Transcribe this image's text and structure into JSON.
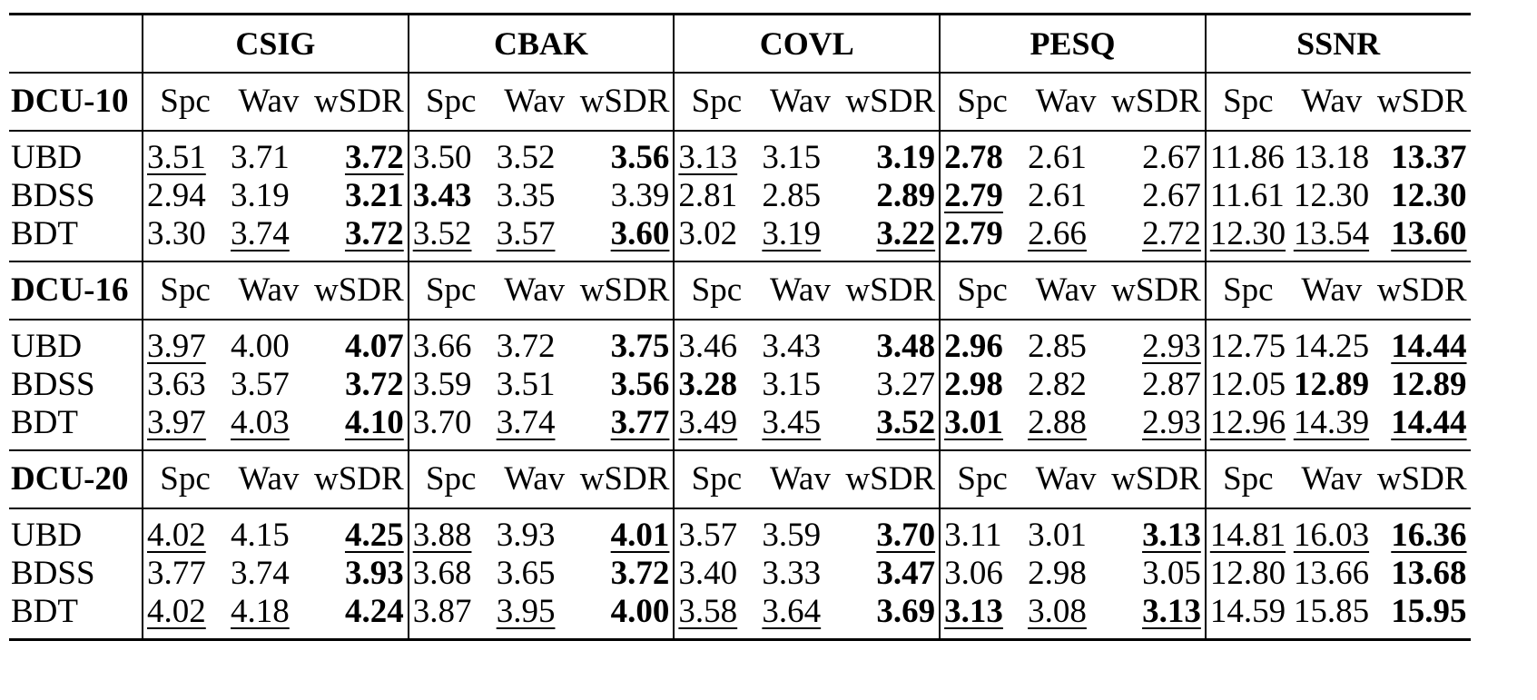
{
  "table": {
    "metrics": [
      "CSIG",
      "CBAK",
      "COVL",
      "PESQ",
      "SSNR"
    ],
    "blocks": [
      {
        "label": "DCU-10",
        "subheaders": [
          "Spc",
          "Wav",
          "wSDR",
          "Spc",
          "Wav",
          "wSDR",
          "Spc",
          "Wav",
          "wSDR",
          "Spc",
          "Wav",
          "wSDR",
          "Spc",
          "Wav",
          "wSDR"
        ],
        "rows": [
          {
            "label": "UBD",
            "cells": [
              "3.51",
              "3.71",
              "3.72",
              "3.50",
              "3.52",
              "3.56",
              "3.13",
              "3.15",
              "3.19",
              "2.78",
              "2.61",
              "2.67",
              "11.86",
              "13.18",
              "13.37"
            ],
            "bold": [
              2,
              5,
              8,
              9,
              14
            ],
            "underline": [
              0,
              2,
              6
            ]
          },
          {
            "label": "BDSS",
            "cells": [
              "2.94",
              "3.19",
              "3.21",
              "3.43",
              "3.35",
              "3.39",
              "2.81",
              "2.85",
              "2.89",
              "2.79",
              "2.61",
              "2.67",
              "11.61",
              "12.30",
              "12.30"
            ],
            "bold": [
              2,
              3,
              8,
              9,
              14
            ],
            "underline": [
              9
            ]
          },
          {
            "label": "BDT",
            "cells": [
              "3.30",
              "3.74",
              "3.72",
              "3.52",
              "3.57",
              "3.60",
              "3.02",
              "3.19",
              "3.22",
              "2.79",
              "2.66",
              "2.72",
              "12.30",
              "13.54",
              "13.60"
            ],
            "bold": [
              2,
              5,
              8,
              9,
              14
            ],
            "underline": [
              1,
              2,
              3,
              4,
              5,
              7,
              8,
              10,
              11,
              12,
              13,
              14
            ]
          }
        ]
      },
      {
        "label": "DCU-16",
        "subheaders": [
          "Spc",
          "Wav",
          "wSDR",
          "Spc",
          "Wav",
          "wSDR",
          "Spc",
          "Wav",
          "wSDR",
          "Spc",
          "Wav",
          "wSDR",
          "Spc",
          "Wav",
          "wSDR"
        ],
        "rows": [
          {
            "label": "UBD",
            "cells": [
              "3.97",
              "4.00",
              "4.07",
              "3.66",
              "3.72",
              "3.75",
              "3.46",
              "3.43",
              "3.48",
              "2.96",
              "2.85",
              "2.93",
              "12.75",
              "14.25",
              "14.44"
            ],
            "bold": [
              2,
              5,
              8,
              9,
              14
            ],
            "underline": [
              0,
              11,
              14
            ]
          },
          {
            "label": "BDSS",
            "cells": [
              "3.63",
              "3.57",
              "3.72",
              "3.59",
              "3.51",
              "3.56",
              "3.28",
              "3.15",
              "3.27",
              "2.98",
              "2.82",
              "2.87",
              "12.05",
              "12.89",
              "12.89"
            ],
            "bold": [
              2,
              5,
              6,
              9,
              13,
              14
            ],
            "underline": []
          },
          {
            "label": "BDT",
            "cells": [
              "3.97",
              "4.03",
              "4.10",
              "3.70",
              "3.74",
              "3.77",
              "3.49",
              "3.45",
              "3.52",
              "3.01",
              "2.88",
              "2.93",
              "12.96",
              "14.39",
              "14.44"
            ],
            "bold": [
              2,
              5,
              8,
              9,
              14
            ],
            "underline": [
              0,
              1,
              2,
              4,
              5,
              6,
              7,
              8,
              9,
              10,
              11,
              12,
              13,
              14
            ]
          }
        ]
      },
      {
        "label": "DCU-20",
        "subheaders": [
          "Spc",
          "Wav",
          "wSDR",
          "Spc",
          "Wav",
          "wSDR",
          "Spc",
          "Wav",
          "wSDR",
          "Spc",
          "Wav",
          "wSDR",
          "Spc",
          "Wav",
          "wSDR"
        ],
        "rows": [
          {
            "label": "UBD",
            "cells": [
              "4.02",
              "4.15",
              "4.25",
              "3.88",
              "3.93",
              "4.01",
              "3.57",
              "3.59",
              "3.70",
              "3.11",
              "3.01",
              "3.13",
              "14.81",
              "16.03",
              "16.36"
            ],
            "bold": [
              2,
              5,
              8,
              11,
              14
            ],
            "underline": [
              0,
              2,
              3,
              5,
              8,
              11,
              12,
              13,
              14
            ]
          },
          {
            "label": "BDSS",
            "cells": [
              "3.77",
              "3.74",
              "3.93",
              "3.68",
              "3.65",
              "3.72",
              "3.40",
              "3.33",
              "3.47",
              "3.06",
              "2.98",
              "3.05",
              "12.80",
              "13.66",
              "13.68"
            ],
            "bold": [
              2,
              5,
              8,
              14
            ],
            "underline": []
          },
          {
            "label": "BDT",
            "cells": [
              "4.02",
              "4.18",
              "4.24",
              "3.87",
              "3.95",
              "4.00",
              "3.58",
              "3.64",
              "3.69",
              "3.13",
              "3.08",
              "3.13",
              "14.59",
              "15.85",
              "15.95"
            ],
            "bold": [
              2,
              5,
              8,
              9,
              11,
              14
            ],
            "underline": [
              0,
              1,
              4,
              6,
              7,
              9,
              10,
              11
            ]
          }
        ]
      }
    ]
  }
}
